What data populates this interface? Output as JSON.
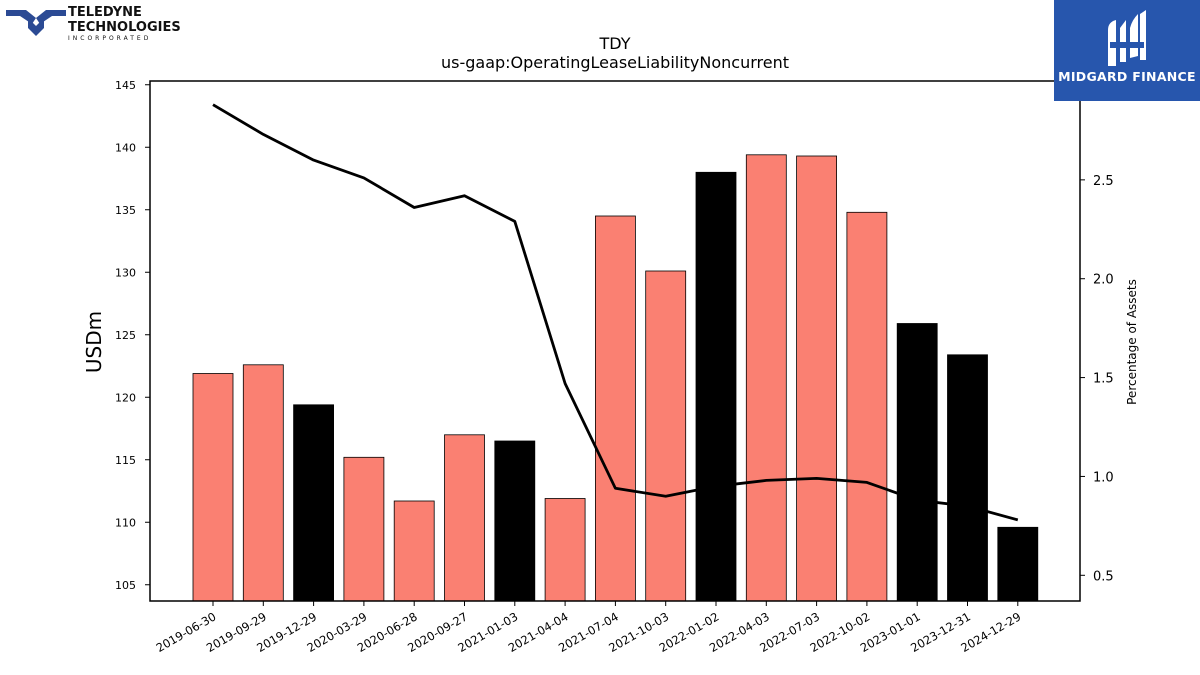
{
  "logos": {
    "left_line1": "TELEDYNE",
    "left_line2": "TECHNOLOGIES",
    "left_line3": "INCORPORATED",
    "right_name": "MIDGARD FINANCE",
    "right_color": "#2756ad"
  },
  "chart_data": {
    "type": "bar",
    "title": "TDY",
    "subtitle": "us-gaap:OperatingLeaseLiabilityNoncurrent",
    "ylabel": "USDm",
    "y2label": "Percentage of Assets",
    "ylim": [
      103.7,
      145.3
    ],
    "y2lim": [
      0.37,
      3.0
    ],
    "yticks": [
      105,
      110,
      115,
      120,
      125,
      130,
      135,
      140,
      145
    ],
    "y2ticks": [
      0.5,
      1.0,
      1.5,
      2.0,
      2.5
    ],
    "categories": [
      "2019-06-30",
      "2019-09-29",
      "2019-12-29",
      "2020-03-29",
      "2020-06-28",
      "2020-09-27",
      "2021-01-03",
      "2021-04-04",
      "2021-07-04",
      "2021-10-03",
      "2022-01-02",
      "2022-04-03",
      "2022-07-03",
      "2022-10-02",
      "2023-01-01",
      "2023-12-31",
      "2024-12-29"
    ],
    "series": [
      {
        "type": "bar",
        "values": [
          121.9,
          122.6,
          119.4,
          115.2,
          111.7,
          117.0,
          116.5,
          111.9,
          134.5,
          130.1,
          138.0,
          139.4,
          139.3,
          134.8,
          125.9,
          123.4,
          109.6
        ],
        "colors": [
          "#fa8072",
          "#fa8072",
          "#000000",
          "#fa8072",
          "#fa8072",
          "#fa8072",
          "#000000",
          "#fa8072",
          "#fa8072",
          "#fa8072",
          "#000000",
          "#fa8072",
          "#fa8072",
          "#fa8072",
          "#000000",
          "#000000",
          "#000000"
        ]
      },
      {
        "type": "line",
        "axis": "right",
        "values": [
          2.88,
          2.73,
          2.6,
          2.51,
          2.36,
          2.42,
          2.29,
          1.47,
          0.94,
          0.9,
          0.95,
          0.98,
          0.99,
          0.97,
          0.88,
          0.85,
          0.78
        ],
        "color": "#000000"
      }
    ],
    "grid": false,
    "legend": "none"
  }
}
